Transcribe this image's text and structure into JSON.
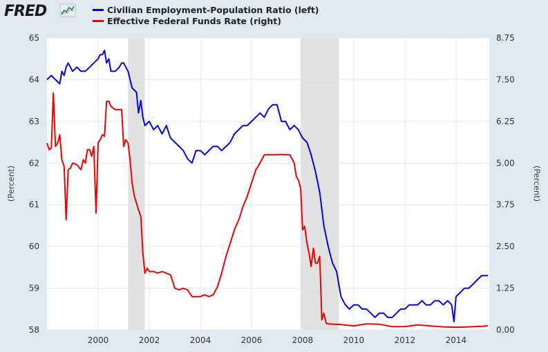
{
  "brand": {
    "logo_text": "FRED"
  },
  "chart_data": {
    "type": "line",
    "title": "",
    "ylabel_left": "(Percent)",
    "ylabel_right": "(Percent)",
    "ylim_left": [
      58,
      65
    ],
    "ylim_right": [
      0,
      8.75
    ],
    "xlim": [
      1998.0,
      2015.3
    ],
    "grid": true,
    "legend_placement": "top-left",
    "x_ticks": [
      2000,
      2002,
      2004,
      2006,
      2008,
      2010,
      2012,
      2014
    ],
    "x_tick_labels": [
      "2000",
      "2002",
      "2004",
      "2006",
      "2008",
      "2010",
      "2012",
      "2014"
    ],
    "y_ticks_left": [
      58,
      59,
      60,
      61,
      62,
      63,
      64,
      65
    ],
    "y_tick_labels_left": [
      "58",
      "59",
      "60",
      "61",
      "62",
      "63",
      "64",
      "65"
    ],
    "y_ticks_right": [
      0,
      1.25,
      2.5,
      3.75,
      5,
      6.25,
      7.5,
      8.75
    ],
    "y_tick_labels_right": [
      "0.00",
      "1.25",
      "2.50",
      "3.75",
      "5.00",
      "6.25",
      "7.50",
      "8.75"
    ],
    "recessions": [
      [
        2001.17,
        2001.83
      ],
      [
        2007.92,
        2009.42
      ]
    ],
    "series": [
      {
        "name": "Civilian Employment-Population Ratio (left)",
        "color": "#0000ee",
        "axis": "left",
        "x": [
          1998.0,
          1998.17,
          1998.33,
          1998.5,
          1998.58,
          1998.67,
          1998.75,
          1998.83,
          1999.0,
          1999.17,
          1999.33,
          1999.5,
          1999.67,
          1999.83,
          2000.0,
          2000.08,
          2000.17,
          2000.25,
          2000.33,
          2000.42,
          2000.5,
          2000.67,
          2000.83,
          2000.92,
          2001.0,
          2001.17,
          2001.33,
          2001.5,
          2001.58,
          2001.67,
          2001.75,
          2001.83,
          2002.0,
          2002.17,
          2002.33,
          2002.5,
          2002.67,
          2002.83,
          2003.0,
          2003.17,
          2003.33,
          2003.5,
          2003.67,
          2003.83,
          2004.0,
          2004.17,
          2004.33,
          2004.5,
          2004.67,
          2004.83,
          2005.0,
          2005.17,
          2005.33,
          2005.5,
          2005.67,
          2005.83,
          2006.0,
          2006.17,
          2006.33,
          2006.5,
          2006.67,
          2006.83,
          2007.0,
          2007.17,
          2007.33,
          2007.5,
          2007.67,
          2007.83,
          2008.0,
          2008.17,
          2008.33,
          2008.5,
          2008.67,
          2008.83,
          2009.0,
          2009.17,
          2009.33,
          2009.5,
          2009.67,
          2009.83,
          2010.0,
          2010.17,
          2010.33,
          2010.5,
          2010.67,
          2010.83,
          2011.0,
          2011.17,
          2011.33,
          2011.5,
          2011.67,
          2011.83,
          2012.0,
          2012.17,
          2012.33,
          2012.5,
          2012.67,
          2012.83,
          2013.0,
          2013.17,
          2013.33,
          2013.5,
          2013.67,
          2013.83,
          2013.92,
          2014.0,
          2014.17,
          2014.33,
          2014.5,
          2014.67,
          2014.83,
          2015.0,
          2015.17,
          2015.25
        ],
        "y": [
          64.0,
          64.1,
          64.0,
          63.9,
          64.2,
          64.1,
          64.3,
          64.4,
          64.2,
          64.3,
          64.2,
          64.2,
          64.3,
          64.4,
          64.5,
          64.6,
          64.6,
          64.7,
          64.4,
          64.5,
          64.2,
          64.2,
          64.3,
          64.4,
          64.4,
          64.2,
          63.8,
          63.7,
          63.2,
          63.5,
          63.1,
          62.9,
          63.0,
          62.8,
          62.9,
          62.7,
          62.9,
          62.6,
          62.5,
          62.4,
          62.3,
          62.1,
          62.0,
          62.3,
          62.3,
          62.2,
          62.3,
          62.4,
          62.4,
          62.3,
          62.4,
          62.5,
          62.7,
          62.8,
          62.9,
          62.9,
          63.0,
          63.1,
          63.2,
          63.1,
          63.3,
          63.4,
          63.4,
          63.0,
          63.0,
          62.8,
          62.9,
          62.8,
          62.6,
          62.5,
          62.2,
          61.8,
          61.3,
          60.5,
          60.0,
          59.6,
          59.4,
          58.8,
          58.6,
          58.5,
          58.6,
          58.6,
          58.5,
          58.5,
          58.4,
          58.3,
          58.4,
          58.4,
          58.3,
          58.3,
          58.4,
          58.5,
          58.5,
          58.6,
          58.6,
          58.6,
          58.7,
          58.6,
          58.6,
          58.7,
          58.7,
          58.6,
          58.7,
          58.6,
          58.2,
          58.8,
          58.9,
          59.0,
          59.0,
          59.1,
          59.2,
          59.3,
          59.3,
          59.3
        ]
      },
      {
        "name": "Effective Federal Funds Rate (right)",
        "color": "#ee0000",
        "axis": "right",
        "x": [
          1998.0,
          1998.08,
          1998.17,
          1998.25,
          1998.33,
          1998.42,
          1998.5,
          1998.58,
          1998.67,
          1998.75,
          1998.83,
          1998.92,
          1999.0,
          1999.17,
          1999.33,
          1999.42,
          1999.5,
          1999.58,
          1999.67,
          1999.75,
          1999.83,
          1999.92,
          2000.0,
          2000.08,
          2000.17,
          2000.25,
          2000.33,
          2000.42,
          2000.5,
          2000.67,
          2000.83,
          2000.92,
          2001.0,
          2001.08,
          2001.17,
          2001.25,
          2001.33,
          2001.42,
          2001.5,
          2001.58,
          2001.67,
          2001.75,
          2001.83,
          2001.92,
          2002.0,
          2002.17,
          2002.33,
          2002.5,
          2002.67,
          2002.83,
          2003.0,
          2003.17,
          2003.33,
          2003.5,
          2003.67,
          2003.83,
          2004.0,
          2004.17,
          2004.33,
          2004.5,
          2004.67,
          2004.83,
          2005.0,
          2005.17,
          2005.33,
          2005.5,
          2005.67,
          2005.83,
          2006.0,
          2006.17,
          2006.33,
          2006.5,
          2006.67,
          2006.83,
          2007.0,
          2007.17,
          2007.33,
          2007.5,
          2007.67,
          2007.75,
          2007.83,
          2007.92,
          2008.0,
          2008.08,
          2008.17,
          2008.25,
          2008.33,
          2008.42,
          2008.5,
          2008.58,
          2008.67,
          2008.75,
          2008.83,
          2008.92,
          2009.0,
          2009.5,
          2010.0,
          2010.5,
          2011.0,
          2011.5,
          2012.0,
          2012.5,
          2013.0,
          2013.5,
          2014.0,
          2014.5,
          2015.0,
          2015.17,
          2015.25
        ],
        "y": [
          5.6,
          5.4,
          5.45,
          7.1,
          5.5,
          5.6,
          5.85,
          5.1,
          4.9,
          3.3,
          4.8,
          4.85,
          5.0,
          4.95,
          4.8,
          5.1,
          5.0,
          5.4,
          5.4,
          5.2,
          5.5,
          3.5,
          5.6,
          5.7,
          5.85,
          5.8,
          6.85,
          6.85,
          6.7,
          6.6,
          6.6,
          6.6,
          5.5,
          5.7,
          5.6,
          5.1,
          4.4,
          4.0,
          3.8,
          3.6,
          3.4,
          2.3,
          1.7,
          1.85,
          1.75,
          1.75,
          1.7,
          1.75,
          1.7,
          1.65,
          1.25,
          1.2,
          1.25,
          1.2,
          1.0,
          1.0,
          1.0,
          1.05,
          1.0,
          1.05,
          1.3,
          1.7,
          2.2,
          2.6,
          3.0,
          3.3,
          3.7,
          4.0,
          4.4,
          4.8,
          5.0,
          5.25,
          5.25,
          5.25,
          5.25,
          5.26,
          5.25,
          5.25,
          5.0,
          4.6,
          4.5,
          4.25,
          3.0,
          3.1,
          2.6,
          2.3,
          1.9,
          2.45,
          2.0,
          2.0,
          2.2,
          0.3,
          0.5,
          0.2,
          0.18,
          0.16,
          0.12,
          0.18,
          0.17,
          0.1,
          0.1,
          0.15,
          0.12,
          0.09,
          0.08,
          0.09,
          0.11,
          0.12,
          0.13
        ]
      }
    ]
  }
}
